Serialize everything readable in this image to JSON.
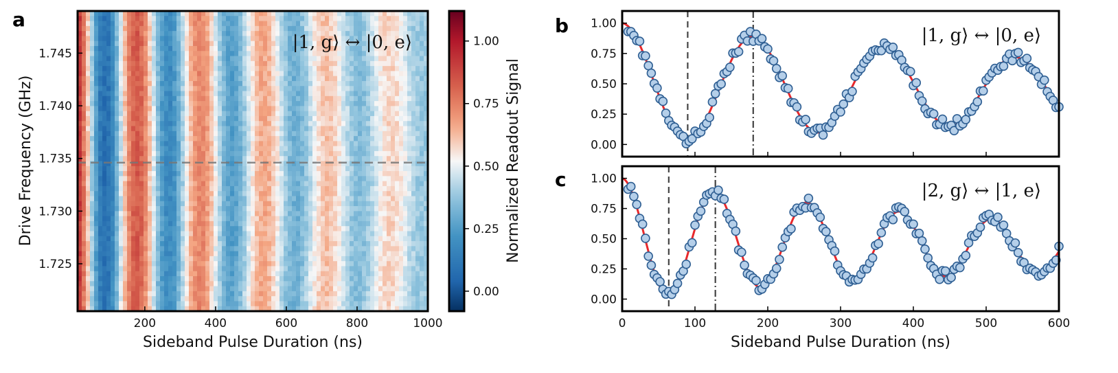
{
  "chart_data": [
    {
      "panel": "a",
      "type": "heatmap",
      "xlabel": "Sideband Pulse Duration (ns)",
      "ylabel": "Drive Frequency (GHz)",
      "xlim": [
        10,
        1000
      ],
      "ylim": [
        1.7205,
        1.749
      ],
      "xticks": [
        "200",
        "400",
        "600",
        "800",
        "1000"
      ],
      "xtick_values": [
        200,
        400,
        600,
        800,
        1000
      ],
      "yticks": [
        "1.725",
        "1.730",
        "1.735",
        "1.740",
        "1.745"
      ],
      "ytick_values": [
        1.725,
        1.73,
        1.735,
        1.74,
        1.745
      ],
      "resonance_frequency": 1.7346,
      "oscillation_period_ns": 180,
      "annotation": "|1, g⟩ ↔ |0, e⟩",
      "colorbar": {
        "label": "Normalized Readout Signal",
        "range": [
          -0.08,
          1.12
        ],
        "ticks": [
          "0.00",
          "0.25",
          "0.50",
          "0.75",
          "1.00"
        ],
        "tick_values": [
          0.0,
          0.25,
          0.5,
          0.75,
          1.0
        ],
        "colormap": "RdBu_r"
      }
    },
    {
      "panel": "b",
      "type": "scatter",
      "annotation": "|1, g⟩ ↔ |0, e⟩",
      "xlim": [
        0,
        600
      ],
      "ylim": [
        -0.1,
        1.1
      ],
      "yticks": [
        "0.00",
        "0.25",
        "0.50",
        "0.75",
        "1.00"
      ],
      "ytick_values": [
        0.0,
        0.25,
        0.5,
        0.75,
        1.0
      ],
      "vlines": {
        "dashed": 90,
        "dashdot": 180
      },
      "fit": {
        "period_ns": 180,
        "decay_ns": 900
      },
      "point_spacing_ns": 4
    },
    {
      "panel": "c",
      "type": "scatter",
      "annotation": "|2, g⟩ ↔ |1, e⟩",
      "xlabel": "Sideband Pulse Duration (ns)",
      "xlim": [
        0,
        600
      ],
      "ylim": [
        -0.1,
        1.1
      ],
      "xticks": [
        "0",
        "100",
        "200",
        "300",
        "400",
        "500",
        "600"
      ],
      "xtick_values": [
        0,
        100,
        200,
        300,
        400,
        500,
        600
      ],
      "yticks": [
        "0.00",
        "0.25",
        "0.50",
        "0.75",
        "1.00"
      ],
      "ytick_values": [
        0.0,
        0.25,
        0.5,
        0.75,
        1.0
      ],
      "vlines": {
        "dashed": 64,
        "dashdot": 128
      },
      "fit": {
        "period_ns": 127,
        "decay_ns": 650
      },
      "point_spacing_ns": 4
    }
  ],
  "colors": {
    "fit_line": "#e8282b",
    "marker_fill": "#b5cfe9",
    "marker_edge": "#2f5f93",
    "vline": "#444444",
    "resonance_line": "#777777"
  }
}
